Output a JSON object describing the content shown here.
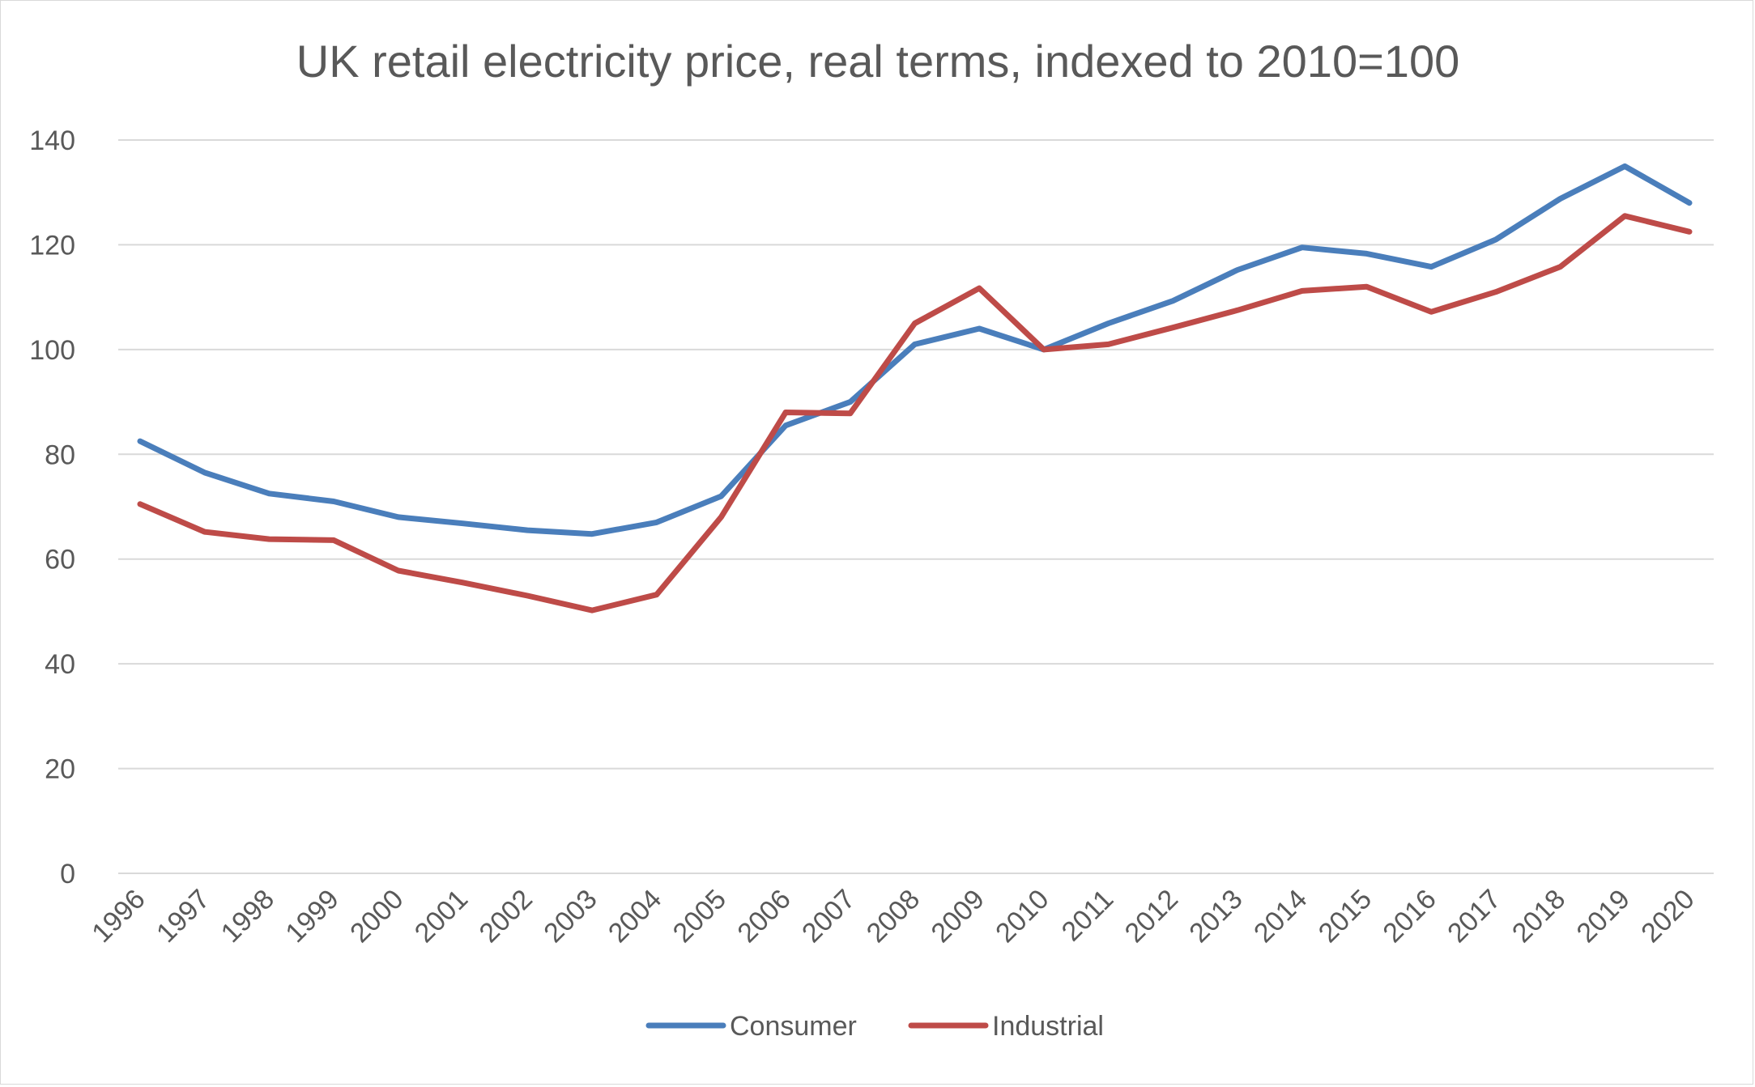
{
  "chart_data": {
    "type": "line",
    "title": "UK retail electricity price, real terms, indexed to 2010=100",
    "xlabel": "",
    "ylabel": "",
    "categories": [
      "1996",
      "1997",
      "1998",
      "1999",
      "2000",
      "2001",
      "2002",
      "2003",
      "2004",
      "2005",
      "2006",
      "2007",
      "2008",
      "2009",
      "2010",
      "2011",
      "2012",
      "2013",
      "2014",
      "2015",
      "2016",
      "2017",
      "2018",
      "2019",
      "2020"
    ],
    "ylim": [
      0,
      140
    ],
    "yticks": [
      "0",
      "20",
      "40",
      "60",
      "80",
      "100",
      "120",
      "140"
    ],
    "grid": true,
    "legend_position": "bottom",
    "series": [
      {
        "name": "Consumer",
        "color": "#4a7ebb",
        "values": [
          82.5,
          76.5,
          72.5,
          71,
          68,
          66.8,
          65.5,
          64.8,
          67,
          72,
          85.5,
          90,
          101,
          104,
          100,
          105,
          109.3,
          115.2,
          119.5,
          118.3,
          115.8,
          121,
          128.8,
          135,
          128
        ]
      },
      {
        "name": "Industrial",
        "color": "#be4b48",
        "values": [
          70.5,
          65.2,
          63.8,
          63.6,
          57.8,
          55.5,
          53,
          50.2,
          53.2,
          68,
          88,
          87.8,
          105,
          111.7,
          100,
          101,
          104.2,
          107.5,
          111.2,
          112,
          107.2,
          111,
          115.8,
          125.5,
          122.5
        ]
      }
    ]
  }
}
